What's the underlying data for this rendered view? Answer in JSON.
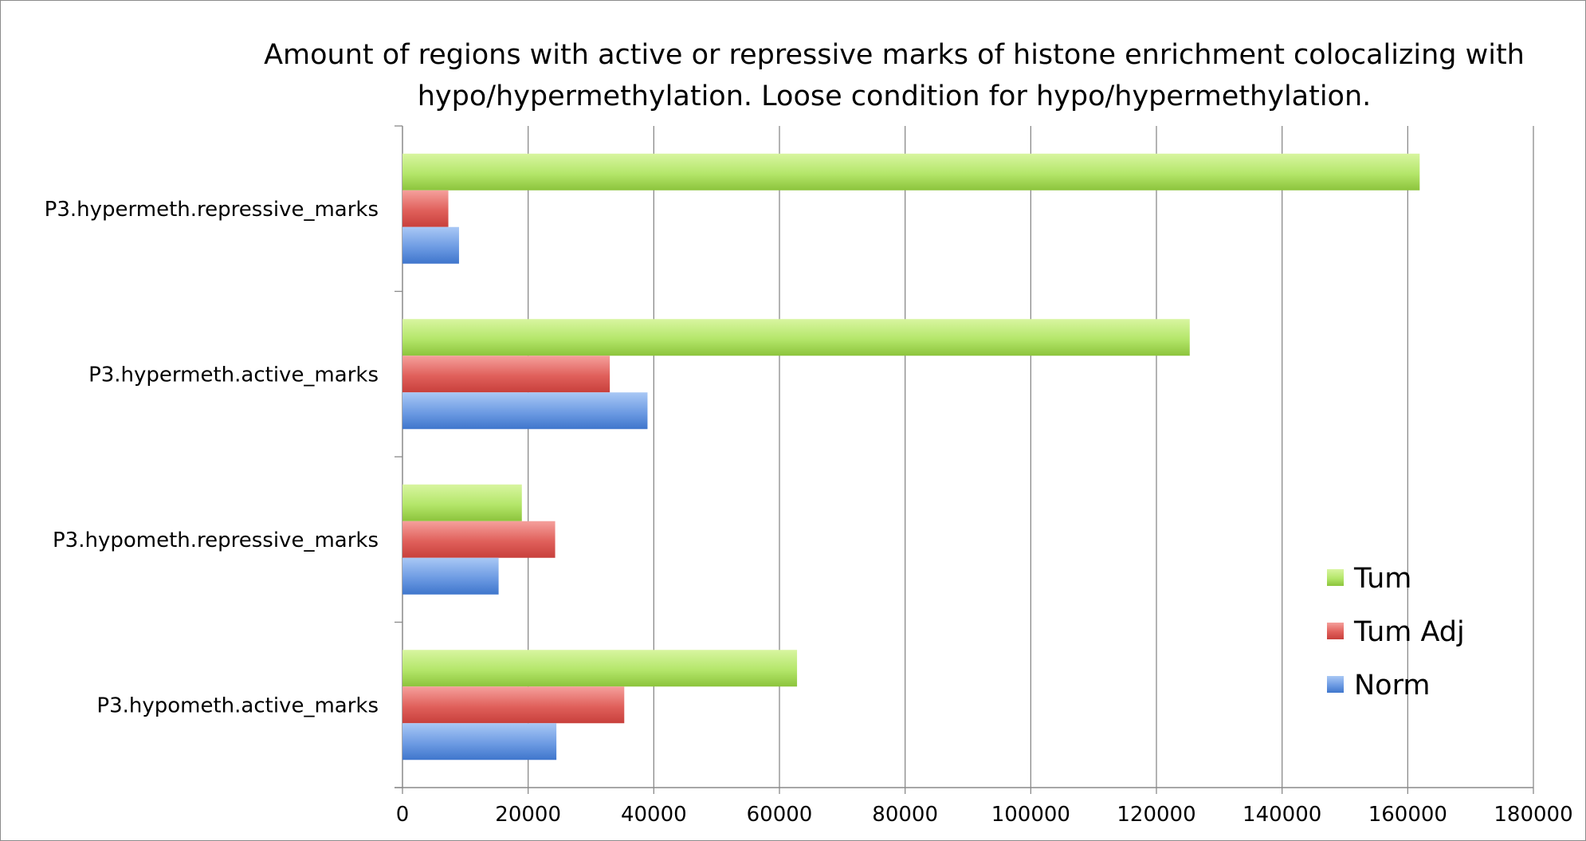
{
  "chart_data": {
    "type": "bar",
    "orientation": "horizontal",
    "title": "Amount of regions with active or repressive marks of histone enrichment colocalizing with hypo/hypermethylation. Loose condition for hypo/hypermethylation.",
    "title_lines": [
      "Amount of regions with active or repressive marks of histone enrichment colocalizing with",
      "hypo/hypermethylation. Loose condition for hypo/hypermethylation."
    ],
    "categories": [
      "P3.hypometh.active_marks",
      "P3.hypometh.repressive_marks",
      "P3.hypermeth.active_marks",
      "P3.hypermeth.repressive_marks"
    ],
    "series": [
      {
        "name": "Norm",
        "color": "#4f86d8",
        "values": [
          24500,
          15300,
          39000,
          9000
        ]
      },
      {
        "name": "Tum Adj",
        "color": "#d9534f",
        "values": [
          35300,
          24300,
          33000,
          7300
        ]
      },
      {
        "name": "Tum",
        "color": "#9bd048",
        "values": [
          62800,
          19000,
          125300,
          161900
        ]
      }
    ],
    "xlim": [
      0,
      180000
    ],
    "x_ticks": [
      "0",
      "20000",
      "40000",
      "60000",
      "80000",
      "100000",
      "120000",
      "140000",
      "160000",
      "180000"
    ],
    "xlabel": "",
    "ylabel": "",
    "grid": "vertical",
    "legend": {
      "placement": "bottom-right",
      "entries": [
        "Tum",
        "Tum Adj",
        "Norm"
      ]
    }
  }
}
